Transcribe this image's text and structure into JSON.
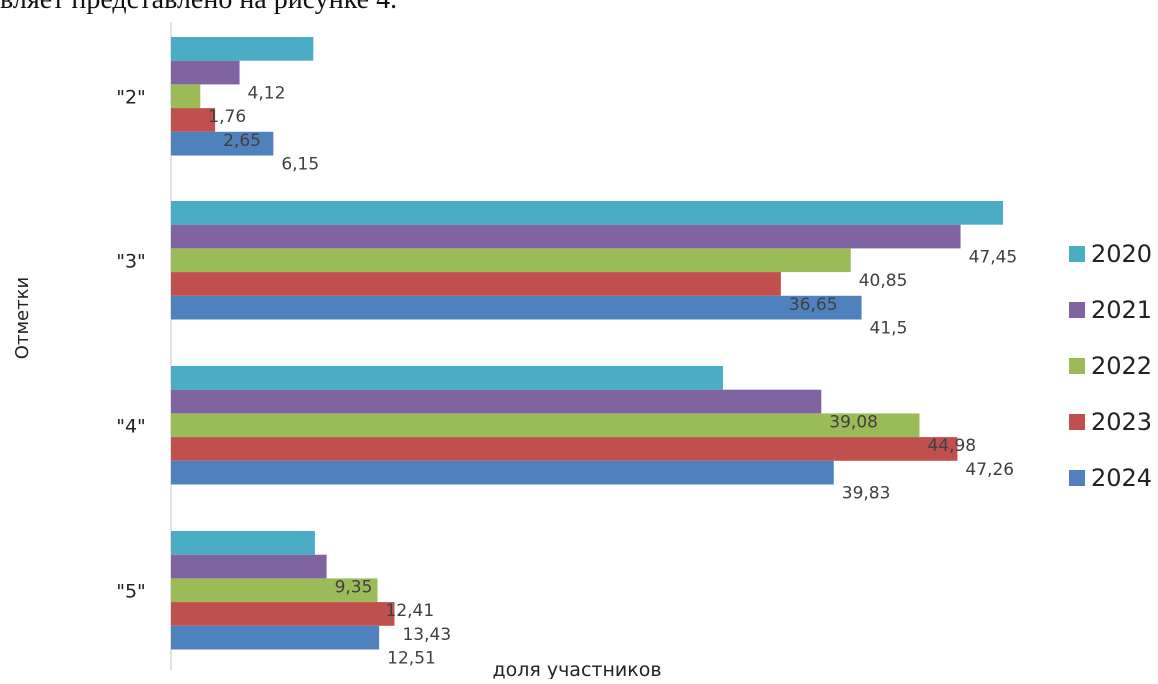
{
  "header_text": "вляет представлено на рисунке 4.",
  "chart_data": {
    "type": "bar",
    "orientation": "horizontal",
    "title": "",
    "xlabel": "доля участников",
    "ylabel": "Отметки",
    "categories": [
      "\"2\"",
      "\"3\"",
      "\"4\"",
      "\"5\""
    ],
    "series": [
      {
        "name": "2020",
        "color": "#4BACC6",
        "values": [
          8.55,
          50.0,
          33.17,
          8.65
        ]
      },
      {
        "name": "2021",
        "color": "#8064A2",
        "values": [
          4.12,
          47.45,
          39.08,
          9.35
        ]
      },
      {
        "name": "2022",
        "color": "#9BBB59",
        "values": [
          1.76,
          40.85,
          44.98,
          12.41
        ]
      },
      {
        "name": "2023",
        "color": "#C0504D",
        "values": [
          2.65,
          36.65,
          47.26,
          13.43
        ]
      },
      {
        "name": "2024",
        "color": "#4F81BD",
        "values": [
          6.15,
          41.5,
          39.83,
          12.51
        ]
      }
    ],
    "data_labels": [
      [
        "",
        "4,12",
        "1,76",
        "2,65",
        "6,15"
      ],
      [
        "",
        "47,45",
        "40,85",
        "36,65",
        "41,5"
      ],
      [
        "",
        "39,08",
        "44,98",
        "47,26",
        "39,83"
      ],
      [
        "",
        "9,35",
        "12,41",
        "13,43",
        "12,51"
      ]
    ],
    "xlim": [
      0,
      50
    ],
    "grid": false,
    "legend_position": "right"
  }
}
